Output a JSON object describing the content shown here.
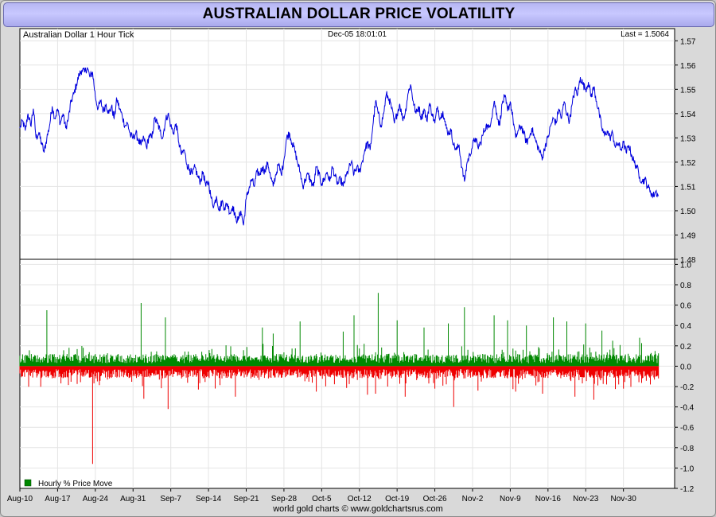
{
  "title": "AUSTRALIAN DOLLAR PRICE VOLATILITY",
  "credit": "world gold charts © www.goldchartsrus.com",
  "chart_data": [
    {
      "type": "line",
      "name": "price-panel",
      "label": "Australian Dollar 1 Hour Tick",
      "timestamp": "Dec-05  18:01:01",
      "last": "Last = 1.5064",
      "color": "#0000dd",
      "ylim": [
        1.48,
        1.575
      ],
      "yticks": [
        1.48,
        1.49,
        1.5,
        1.51,
        1.52,
        1.53,
        1.54,
        1.55,
        1.56,
        1.57
      ],
      "ytick_labels": [
        "1.48",
        "1.49",
        "1.50",
        "1.51",
        "1.52",
        "1.53",
        "1.54",
        "1.55",
        "1.56",
        "1.57"
      ],
      "x_range_days": [
        0,
        121.5
      ],
      "points": [
        [
          0,
          1.534
        ],
        [
          0.5,
          1.537
        ],
        [
          1,
          1.533
        ],
        [
          1.5,
          1.54
        ],
        [
          2,
          1.535
        ],
        [
          2.5,
          1.542
        ],
        [
          3,
          1.53
        ],
        [
          3.5,
          1.532
        ],
        [
          4,
          1.528
        ],
        [
          4.5,
          1.524
        ],
        [
          5,
          1.53
        ],
        [
          5.5,
          1.535
        ],
        [
          6,
          1.543
        ],
        [
          6.5,
          1.538
        ],
        [
          7,
          1.542
        ],
        [
          7.5,
          1.536
        ],
        [
          8,
          1.54
        ],
        [
          8.5,
          1.534
        ],
        [
          9,
          1.538
        ],
        [
          9.5,
          1.545
        ],
        [
          10,
          1.548
        ],
        [
          10.5,
          1.552
        ],
        [
          11,
          1.556
        ],
        [
          11.5,
          1.558
        ],
        [
          12,
          1.557
        ],
        [
          12.5,
          1.559
        ],
        [
          13,
          1.555
        ],
        [
          13.5,
          1.557
        ],
        [
          14,
          1.547
        ],
        [
          14.5,
          1.542
        ],
        [
          15,
          1.545
        ],
        [
          15.5,
          1.541
        ],
        [
          16,
          1.544
        ],
        [
          16.5,
          1.54
        ],
        [
          17,
          1.543
        ],
        [
          17.5,
          1.538
        ],
        [
          18,
          1.546
        ],
        [
          18.5,
          1.542
        ],
        [
          19,
          1.539
        ],
        [
          19.5,
          1.535
        ],
        [
          20,
          1.536
        ],
        [
          20.5,
          1.531
        ],
        [
          21,
          1.53
        ],
        [
          21.5,
          1.532
        ],
        [
          22,
          1.529
        ],
        [
          22.5,
          1.527
        ],
        [
          23,
          1.53
        ],
        [
          23.5,
          1.526
        ],
        [
          24,
          1.531
        ],
        [
          24.5,
          1.53
        ],
        [
          25,
          1.538
        ],
        [
          25.5,
          1.536
        ],
        [
          26,
          1.533
        ],
        [
          26.5,
          1.53
        ],
        [
          27,
          1.537
        ],
        [
          27.5,
          1.54
        ],
        [
          28,
          1.535
        ],
        [
          28.5,
          1.532
        ],
        [
          29,
          1.536
        ],
        [
          29.5,
          1.528
        ],
        [
          30,
          1.523
        ],
        [
          30.5,
          1.525
        ],
        [
          31,
          1.519
        ],
        [
          31.5,
          1.517
        ],
        [
          32,
          1.515
        ],
        [
          32.5,
          1.518
        ],
        [
          33,
          1.514
        ],
        [
          33.5,
          1.512
        ],
        [
          34,
          1.516
        ],
        [
          34.5,
          1.51
        ],
        [
          35,
          1.512
        ],
        [
          35.5,
          1.505
        ],
        [
          36,
          1.502
        ],
        [
          36.5,
          1.506
        ],
        [
          37,
          1.5
        ],
        [
          37.5,
          1.504
        ],
        [
          38,
          1.501
        ],
        [
          38.5,
          1.503
        ],
        [
          39,
          1.499
        ],
        [
          39.5,
          1.502
        ],
        [
          40,
          1.497
        ],
        [
          40.5,
          1.496
        ],
        [
          41,
          1.5
        ],
        [
          41.5,
          1.494
        ],
        [
          42,
          1.505
        ],
        [
          42.5,
          1.509
        ],
        [
          43,
          1.513
        ],
        [
          43.5,
          1.51
        ],
        [
          44,
          1.516
        ],
        [
          44.5,
          1.515
        ],
        [
          45,
          1.518
        ],
        [
          45.5,
          1.516
        ],
        [
          46,
          1.52
        ],
        [
          46.5,
          1.514
        ],
        [
          47,
          1.51
        ],
        [
          47.5,
          1.515
        ],
        [
          48,
          1.519
        ],
        [
          48.5,
          1.515
        ],
        [
          49,
          1.521
        ],
        [
          49.5,
          1.53
        ],
        [
          50,
          1.532
        ],
        [
          50.5,
          1.528
        ],
        [
          51,
          1.525
        ],
        [
          51.5,
          1.52
        ],
        [
          52,
          1.516
        ],
        [
          52.5,
          1.51
        ],
        [
          53,
          1.513
        ],
        [
          53.5,
          1.515
        ],
        [
          54,
          1.512
        ],
        [
          54.5,
          1.51
        ],
        [
          55,
          1.518
        ],
        [
          55.5,
          1.515
        ],
        [
          56,
          1.511
        ],
        [
          56.5,
          1.513
        ],
        [
          57,
          1.516
        ],
        [
          57.5,
          1.512
        ],
        [
          58,
          1.518
        ],
        [
          58.5,
          1.514
        ],
        [
          59,
          1.511
        ],
        [
          59.5,
          1.513
        ],
        [
          60,
          1.51
        ],
        [
          60.5,
          1.514
        ],
        [
          61,
          1.517
        ],
        [
          61.5,
          1.52
        ],
        [
          62,
          1.515
        ],
        [
          62.5,
          1.518
        ],
        [
          63,
          1.516
        ],
        [
          63.5,
          1.52
        ],
        [
          64,
          1.525
        ],
        [
          64.5,
          1.528
        ],
        [
          65,
          1.525
        ],
        [
          65.5,
          1.535
        ],
        [
          66,
          1.545
        ],
        [
          66.5,
          1.54
        ],
        [
          67,
          1.535
        ],
        [
          67.5,
          1.54
        ],
        [
          68,
          1.548
        ],
        [
          68.5,
          1.546
        ],
        [
          69,
          1.542
        ],
        [
          69.5,
          1.536
        ],
        [
          70,
          1.54
        ],
        [
          70.5,
          1.544
        ],
        [
          71,
          1.538
        ],
        [
          71.5,
          1.54
        ],
        [
          72,
          1.548
        ],
        [
          72.5,
          1.552
        ],
        [
          73,
          1.545
        ],
        [
          73.5,
          1.54
        ],
        [
          74,
          1.543
        ],
        [
          74.5,
          1.538
        ],
        [
          75,
          1.542
        ],
        [
          75.5,
          1.537
        ],
        [
          76,
          1.544
        ],
        [
          76.5,
          1.54
        ],
        [
          77,
          1.536
        ],
        [
          77.5,
          1.543
        ],
        [
          78,
          1.538
        ],
        [
          78.5,
          1.541
        ],
        [
          79,
          1.535
        ],
        [
          79.5,
          1.532
        ],
        [
          80,
          1.533
        ],
        [
          80.5,
          1.527
        ],
        [
          81,
          1.525
        ],
        [
          81.5,
          1.527
        ],
        [
          82,
          1.518
        ],
        [
          82.5,
          1.512
        ],
        [
          83,
          1.52
        ],
        [
          83.5,
          1.523
        ],
        [
          84,
          1.527
        ],
        [
          84.5,
          1.53
        ],
        [
          85,
          1.526
        ],
        [
          85.5,
          1.528
        ],
        [
          86,
          1.532
        ],
        [
          86.5,
          1.535
        ],
        [
          87,
          1.534
        ],
        [
          87.5,
          1.538
        ],
        [
          88,
          1.545
        ],
        [
          88.5,
          1.54
        ],
        [
          89,
          1.535
        ],
        [
          89.5,
          1.544
        ],
        [
          90,
          1.547
        ],
        [
          90.5,
          1.541
        ],
        [
          91,
          1.545
        ],
        [
          91.5,
          1.538
        ],
        [
          92,
          1.53
        ],
        [
          92.5,
          1.533
        ],
        [
          93,
          1.535
        ],
        [
          93.5,
          1.532
        ],
        [
          94,
          1.528
        ],
        [
          94.5,
          1.53
        ],
        [
          95,
          1.534
        ],
        [
          95.5,
          1.53
        ],
        [
          96,
          1.527
        ],
        [
          96.5,
          1.524
        ],
        [
          97,
          1.522
        ],
        [
          97.5,
          1.527
        ],
        [
          98,
          1.53
        ],
        [
          98.5,
          1.535
        ],
        [
          99,
          1.538
        ],
        [
          99.5,
          1.536
        ],
        [
          100,
          1.542
        ],
        [
          100.5,
          1.538
        ],
        [
          101,
          1.545
        ],
        [
          101.5,
          1.54
        ],
        [
          102,
          1.537
        ],
        [
          102.5,
          1.544
        ],
        [
          103,
          1.55
        ],
        [
          103.5,
          1.548
        ],
        [
          104,
          1.555
        ],
        [
          104.5,
          1.552
        ],
        [
          105,
          1.55
        ],
        [
          105.5,
          1.553
        ],
        [
          106,
          1.547
        ],
        [
          106.5,
          1.551
        ],
        [
          107,
          1.545
        ],
        [
          107.5,
          1.54
        ],
        [
          108,
          1.534
        ],
        [
          108.5,
          1.531
        ],
        [
          109,
          1.533
        ],
        [
          109.5,
          1.53
        ],
        [
          110,
          1.532
        ],
        [
          110.5,
          1.526
        ],
        [
          111,
          1.528
        ],
        [
          111.5,
          1.525
        ],
        [
          112,
          1.528
        ],
        [
          112.5,
          1.524
        ],
        [
          113,
          1.527
        ],
        [
          113.5,
          1.523
        ],
        [
          114,
          1.52
        ],
        [
          114.5,
          1.518
        ],
        [
          115,
          1.514
        ],
        [
          115.5,
          1.512
        ],
        [
          116,
          1.513
        ],
        [
          116.5,
          1.51
        ],
        [
          117,
          1.508
        ],
        [
          117.5,
          1.506
        ],
        [
          118,
          1.508
        ],
        [
          118.5,
          1.506
        ]
      ]
    },
    {
      "type": "bar",
      "name": "volatility-panel",
      "legend": "Hourly % Price Move",
      "positive_color": "#008800",
      "negative_color": "#ee0000",
      "ylim": [
        -1.2,
        1.05
      ],
      "yticks": [
        -1.2,
        -1.0,
        -0.8,
        -0.6,
        -0.4,
        -0.2,
        0.0,
        0.2,
        0.4,
        0.6,
        0.8,
        1.0
      ],
      "ytick_labels": [
        "-1.2",
        "-1.0",
        "-0.8",
        "-0.6",
        "-0.4",
        "-0.2",
        "0.0",
        "0.2",
        "0.4",
        "0.6",
        "0.8",
        "1.0"
      ],
      "typical_range": [
        -0.12,
        0.12
      ],
      "spikes": [
        [
          5,
          0.55
        ],
        [
          13.3,
          -0.96
        ],
        [
          22.5,
          0.62
        ],
        [
          23,
          -0.32
        ],
        [
          27.5,
          -0.42
        ],
        [
          27,
          0.48
        ],
        [
          40,
          -0.3
        ],
        [
          45,
          0.38
        ],
        [
          47,
          0.32
        ],
        [
          52,
          0.44
        ],
        [
          55,
          -0.25
        ],
        [
          60,
          0.34
        ],
        [
          62,
          0.5
        ],
        [
          64.5,
          -0.28
        ],
        [
          66.5,
          0.72
        ],
        [
          66,
          -0.27
        ],
        [
          70,
          0.45
        ],
        [
          71.5,
          -0.3
        ],
        [
          75,
          0.38
        ],
        [
          77,
          -0.22
        ],
        [
          79.5,
          0.42
        ],
        [
          80.5,
          -0.4
        ],
        [
          82.5,
          0.58
        ],
        [
          85,
          -0.24
        ],
        [
          88,
          0.5
        ],
        [
          90.5,
          0.45
        ],
        [
          92,
          -0.25
        ],
        [
          94,
          0.4
        ],
        [
          97,
          -0.27
        ],
        [
          99,
          0.48
        ],
        [
          101.5,
          0.44
        ],
        [
          103,
          -0.3
        ],
        [
          105,
          0.42
        ],
        [
          106.5,
          -0.33
        ],
        [
          108,
          0.35
        ],
        [
          110,
          0.25
        ],
        [
          112,
          -0.22
        ],
        [
          115,
          0.28
        ],
        [
          117,
          -0.18
        ]
      ]
    }
  ],
  "x_axis": {
    "tick_labels": [
      "Aug-10",
      "Aug-17",
      "Aug-24",
      "Aug-31",
      "Sep-7",
      "Sep-14",
      "Sep-21",
      "Sep-28",
      "Oct-5",
      "Oct-12",
      "Oct-19",
      "Oct-26",
      "Nov-2",
      "Nov-9",
      "Nov-16",
      "Nov-23",
      "Nov-30"
    ],
    "tick_days": [
      0,
      7,
      14,
      21,
      28,
      35,
      42,
      49,
      56,
      63,
      70,
      77,
      84,
      91,
      98,
      105,
      112
    ]
  }
}
